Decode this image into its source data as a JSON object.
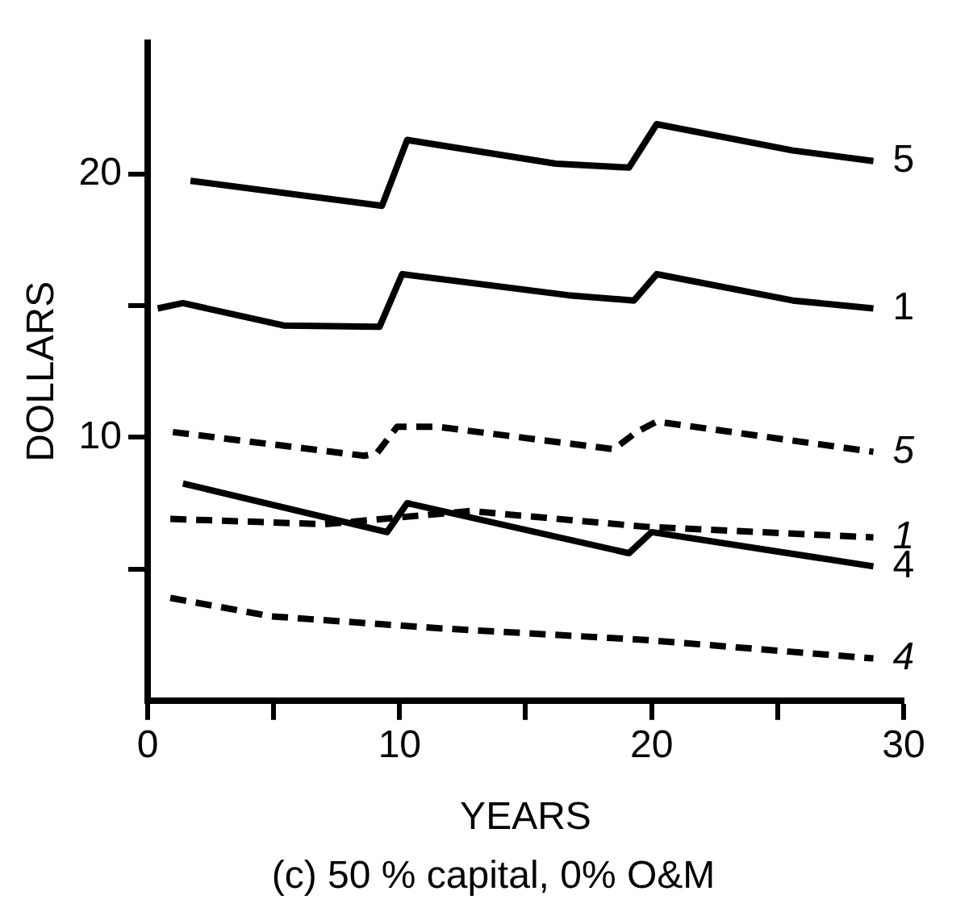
{
  "chart_data": {
    "type": "line",
    "xlabel": "YEARS",
    "ylabel": "DOLLARS",
    "annotations": [
      "(c) 50 % capital, 0% O&M"
    ],
    "xlim": [
      0,
      30
    ],
    "xticks": [
      0,
      {
        "value": 5,
        "label": null
      },
      10,
      {
        "value": 15,
        "label": null
      },
      20,
      {
        "value": 25,
        "label": null
      },
      30
    ],
    "ylim": [
      0,
      25
    ],
    "yticks": [
      {
        "value": 5,
        "label": null
      },
      10,
      {
        "value": 15,
        "label": null
      },
      20
    ],
    "grid": false,
    "legend": false,
    "marker": "none",
    "series": [
      {
        "name": "5",
        "color": "#000000",
        "line_style": "solid",
        "x": [
          1.7,
          9.3,
          10.3,
          16.2,
          19.1,
          20.2,
          25.6,
          28.8
        ],
        "values": [
          19.75,
          18.8,
          21.3,
          20.4,
          20.25,
          21.9,
          20.9,
          20.5
        ]
      },
      {
        "name": "1",
        "color": "#000000",
        "line_style": "solid",
        "x": [
          0.4,
          1.4,
          5.4,
          9.2,
          10.1,
          16.7,
          19.3,
          20.2,
          25.6,
          28.8
        ],
        "values": [
          14.9,
          15.1,
          14.25,
          14.2,
          16.2,
          15.4,
          15.2,
          16.2,
          15.2,
          14.9
        ]
      },
      {
        "name": "5",
        "color": "#000000",
        "line_style": "dashed",
        "x": [
          1.0,
          8.6,
          9.1,
          9.9,
          11.5,
          18.5,
          19.4,
          20.2,
          28.8
        ],
        "values": [
          10.2,
          9.3,
          9.4,
          10.4,
          10.4,
          9.55,
          10.2,
          10.6,
          9.45
        ]
      },
      {
        "name": "1",
        "color": "#000000",
        "line_style": "dashed",
        "x": [
          0.9,
          7.0,
          12.8,
          19.8,
          28.8
        ],
        "values": [
          6.9,
          6.7,
          7.2,
          6.6,
          6.2
        ]
      },
      {
        "name": "4",
        "color": "#000000",
        "line_style": "solid",
        "x": [
          1.4,
          9.5,
          10.3,
          19.1,
          20.0,
          28.8
        ],
        "values": [
          8.25,
          6.4,
          7.5,
          5.6,
          6.4,
          5.1
        ]
      },
      {
        "name": "4",
        "color": "#000000",
        "line_style": "dashed",
        "x": [
          0.9,
          4.9,
          11.5,
          19.8,
          28.8
        ],
        "values": [
          3.9,
          3.2,
          2.75,
          2.3,
          1.6
        ]
      }
    ]
  }
}
